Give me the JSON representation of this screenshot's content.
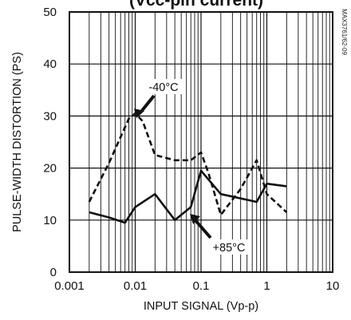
{
  "chart_data": {
    "type": "line",
    "title": "(Vcc-pin current)",
    "xlabel": "INPUT SIGNAL (Vp-p)",
    "ylabel": "PULSE-WIDTH DISTORTION (PS)",
    "figure_code": "MAX3761/62-09",
    "x_scale": "log",
    "xlim": [
      0.001,
      10
    ],
    "ylim": [
      0,
      50
    ],
    "grid": true,
    "x_ticks": [
      {
        "value": 0.001,
        "label": "0.001"
      },
      {
        "value": 0.01,
        "label": "0.01"
      },
      {
        "value": 0.1,
        "label": "0.1"
      },
      {
        "value": 1,
        "label": "1"
      },
      {
        "value": 10,
        "label": "10"
      }
    ],
    "y_ticks": [
      {
        "value": 0,
        "label": "0"
      },
      {
        "value": 10,
        "label": "10"
      },
      {
        "value": 20,
        "label": "20"
      },
      {
        "value": 30,
        "label": "30"
      },
      {
        "value": 40,
        "label": "40"
      },
      {
        "value": 50,
        "label": "50"
      }
    ],
    "series": [
      {
        "name": "-40°C",
        "style": "dashed",
        "color": "#111111",
        "x": [
          0.002,
          0.004,
          0.008,
          0.01,
          0.013,
          0.02,
          0.04,
          0.07,
          0.1,
          0.13,
          0.2,
          0.4,
          0.7,
          1,
          2
        ],
        "y": [
          13.5,
          21,
          29.5,
          30.5,
          29,
          22.5,
          21.5,
          21.5,
          23,
          19,
          11,
          16,
          21.5,
          15,
          11.5
        ]
      },
      {
        "name": "+85°C",
        "style": "solid",
        "color": "#111111",
        "x": [
          0.002,
          0.004,
          0.007,
          0.01,
          0.02,
          0.04,
          0.07,
          0.1,
          0.2,
          0.7,
          1,
          2
        ],
        "y": [
          11.5,
          10.5,
          9.5,
          12.5,
          15,
          10,
          12.5,
          19.5,
          15,
          13.5,
          17,
          16.5
        ]
      }
    ],
    "annotations": [
      {
        "text": "-40°C",
        "series": 0,
        "arrow_to": {
          "x": 0.012,
          "y": 28.5
        }
      },
      {
        "text": "+85°C",
        "series": 1,
        "arrow_to": {
          "x": 0.07,
          "y": 12.5
        }
      }
    ]
  }
}
